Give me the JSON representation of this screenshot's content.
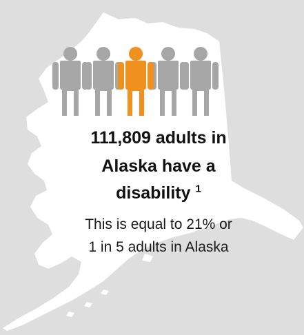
{
  "headline": {
    "line1": "111,809 adults in",
    "line2": "Alaska have a",
    "line3": "disability",
    "footnote": "1"
  },
  "subtext": {
    "line1": "This is equal to 21% or",
    "line2": "1 in 5 adults in Alaska"
  },
  "icons": {
    "people": [
      "person-icon",
      "person-icon",
      "person-icon-highlighted",
      "person-icon",
      "person-icon"
    ],
    "map": "alaska-map-shape"
  },
  "people_highlighted_fraction": "1 of 5",
  "colors": {
    "background": "#dedede",
    "map": "#ffffff",
    "person": "#a6a6a6",
    "person_highlight": "#f0901e",
    "text": "#111111"
  }
}
